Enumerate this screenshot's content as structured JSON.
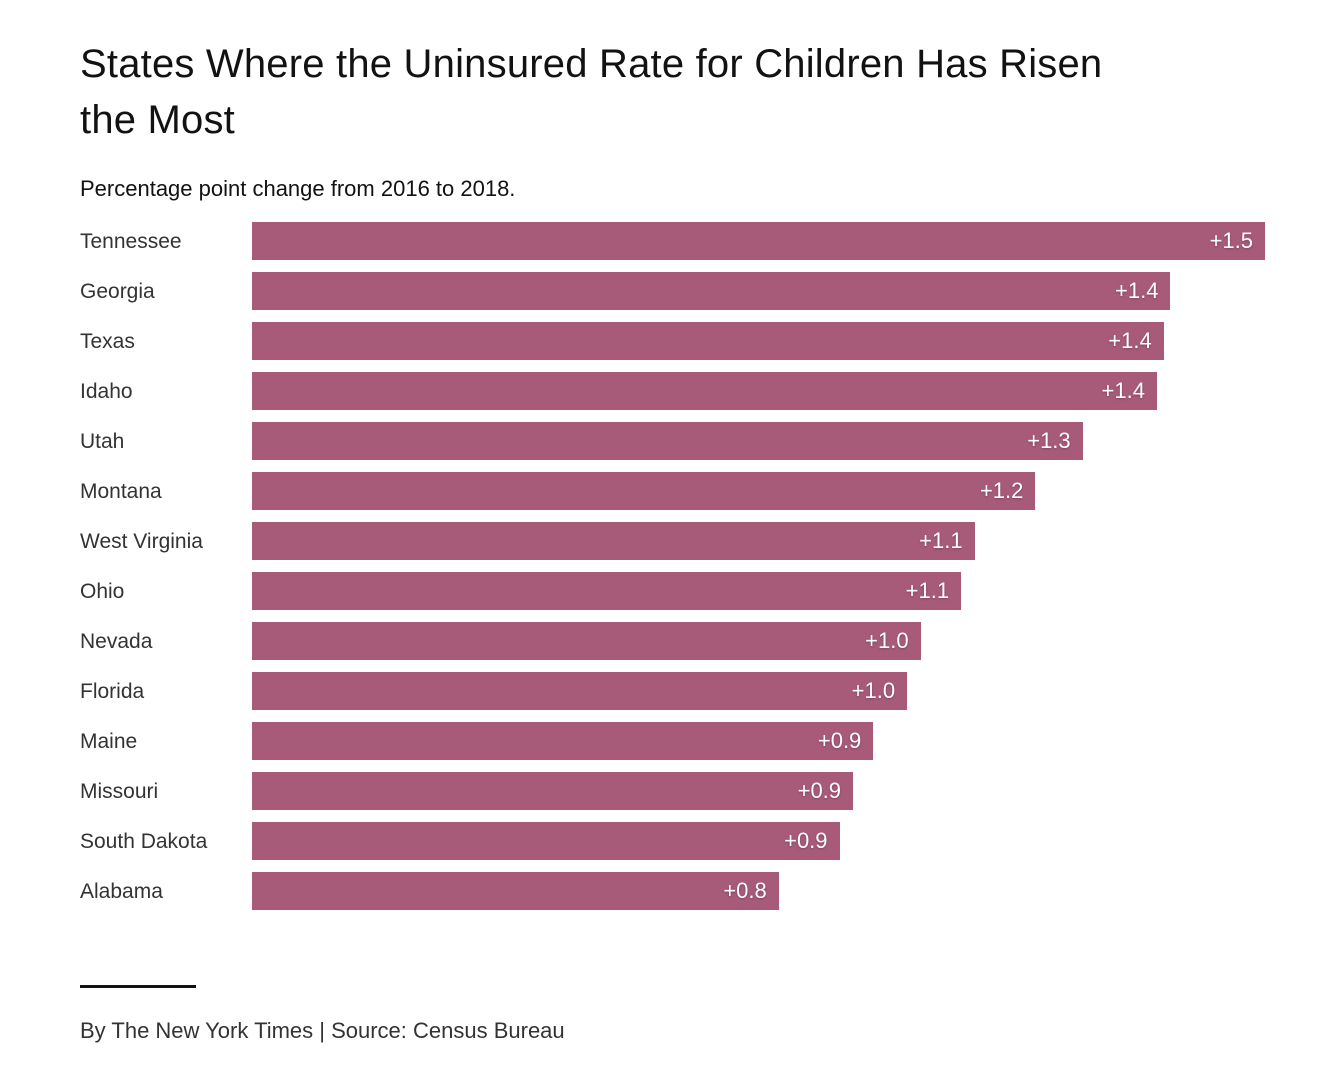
{
  "header": {
    "title": "States Where the Uninsured Rate for Children Has Risen\nthe Most",
    "subtitle": "Percentage point change from 2016 to 2018."
  },
  "footer": {
    "byline": "By The New York Times | Source: Census Bureau"
  },
  "colors": {
    "bar": "#a75b79",
    "title_text": "#121212",
    "label_text": "#333333",
    "value_text": "#ffffff"
  },
  "chart_data": {
    "type": "bar",
    "orientation": "horizontal",
    "title": "States Where the Uninsured Rate for Children Has Risen the Most",
    "subtitle": "Percentage point change from 2016 to 2018.",
    "xlabel": "",
    "ylabel": "",
    "xlim": [
      0,
      1.5
    ],
    "grid": false,
    "legend": "none",
    "categories": [
      "Tennessee",
      "Georgia",
      "Texas",
      "Idaho",
      "Utah",
      "Montana",
      "West Virginia",
      "Ohio",
      "Nevada",
      "Florida",
      "Maine",
      "Missouri",
      "South Dakota",
      "Alabama"
    ],
    "values": [
      1.5,
      1.4,
      1.4,
      1.4,
      1.3,
      1.2,
      1.1,
      1.1,
      1.0,
      1.0,
      0.9,
      0.9,
      0.9,
      0.8
    ],
    "value_labels": [
      "+1.5",
      "+1.4",
      "+1.4",
      "+1.4",
      "+1.3",
      "+1.2",
      "+1.1",
      "+1.1",
      "+1.0",
      "+1.0",
      "+0.9",
      "+0.9",
      "+0.9",
      "+0.8"
    ],
    "bar_lengths_unrounded_est": [
      1.5,
      1.36,
      1.35,
      1.34,
      1.23,
      1.16,
      1.07,
      1.05,
      0.99,
      0.97,
      0.92,
      0.89,
      0.87,
      0.78
    ]
  }
}
